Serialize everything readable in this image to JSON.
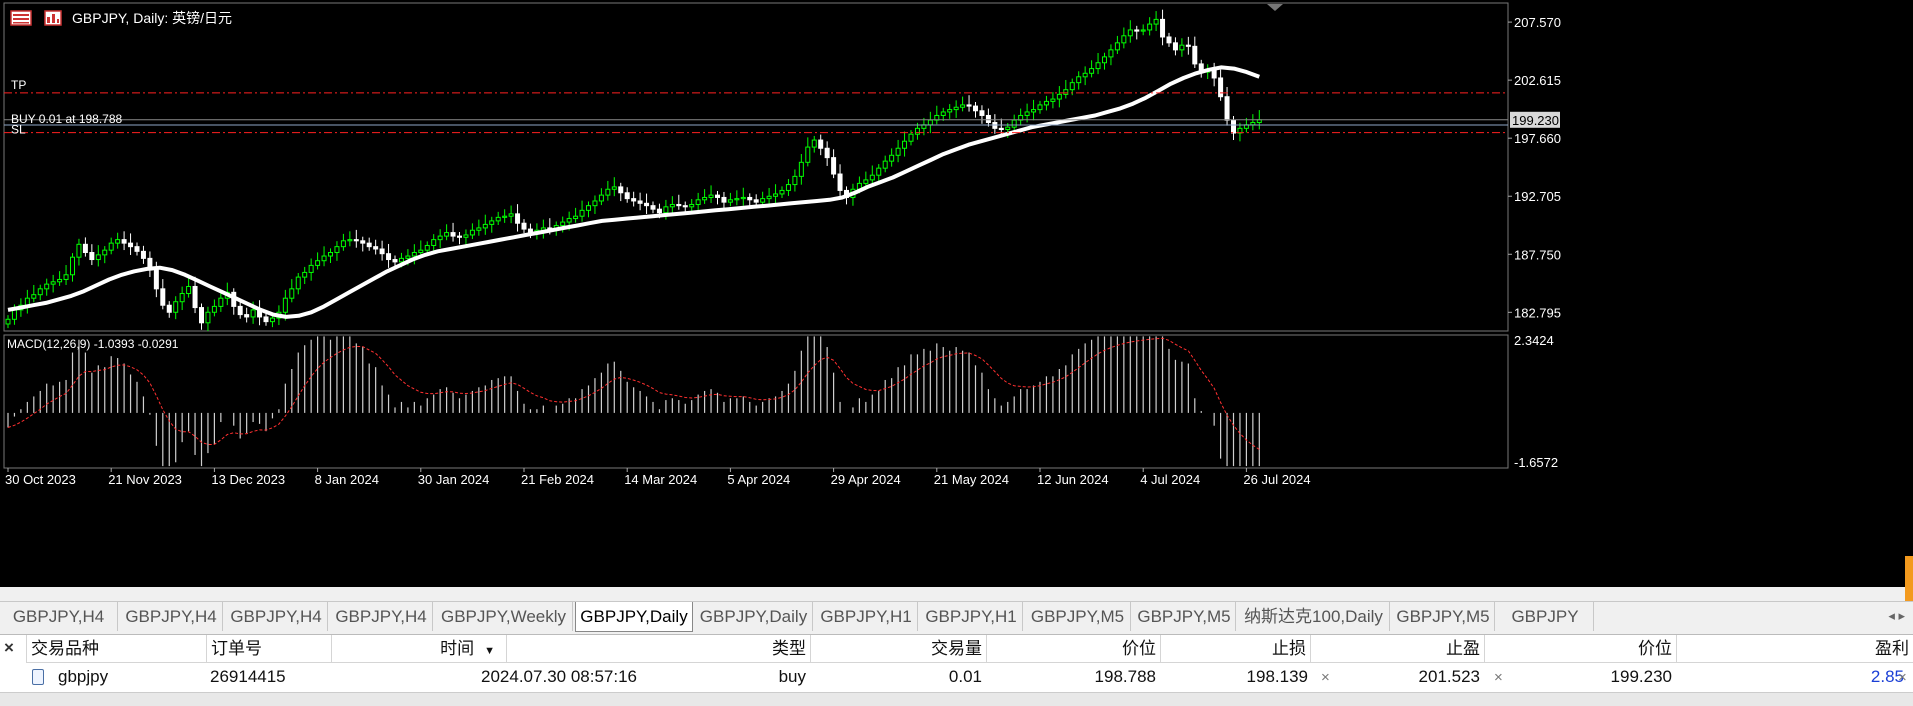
{
  "chart": {
    "title": "GBPJPY, Daily:  英镑/日元",
    "line_tp_label": "TP",
    "line_buy_label": "BUY 0.01 at 198.788",
    "line_sl_label": "SL",
    "current_price": "199.230",
    "price_levels": [
      {
        "value": 207.57,
        "label": "207.570"
      },
      {
        "value": 202.615,
        "label": "202.615"
      },
      {
        "value": 197.66,
        "label": "197.660"
      },
      {
        "value": 192.705,
        "label": "192.705"
      },
      {
        "value": 187.75,
        "label": "187.750"
      },
      {
        "value": 182.795,
        "label": "182.795"
      }
    ],
    "macd_label": "MACD(12,26,9) -1.0393 -0.0291",
    "macd_max_label": "2.3424",
    "macd_min_label": "-1.6572",
    "dates": [
      {
        "label": "30 Oct 2023",
        "index": 0
      },
      {
        "label": "21 Nov 2023",
        "index": 16
      },
      {
        "label": "13 Dec 2023",
        "index": 32
      },
      {
        "label": "8 Jan 2024",
        "index": 48
      },
      {
        "label": "30 Jan 2024",
        "index": 64
      },
      {
        "label": "21 Feb 2024",
        "index": 80
      },
      {
        "label": "14 Mar 2024",
        "index": 96
      },
      {
        "label": "5 Apr 2024",
        "index": 112
      },
      {
        "label": "29 Apr 2024",
        "index": 128
      },
      {
        "label": "21 May 2024",
        "index": 144
      },
      {
        "label": "12 Jun 2024",
        "index": 160
      },
      {
        "label": "4 Jul 2024",
        "index": 176
      },
      {
        "label": "26 Jul 2024",
        "index": 192
      }
    ],
    "levels": {
      "tp": 201.523,
      "buy": 198.788,
      "current": 199.23,
      "sl": 198.139
    },
    "colors": {
      "bull": "#00ff00",
      "bear": "#ffffff",
      "ma": "#ffffff",
      "tp_sl": "#ff2020",
      "signal": "#ff3030",
      "grid": "#444444"
    }
  },
  "chart_data": {
    "type": "candlestick",
    "symbol": "GBPJPY",
    "timeframe": "Daily",
    "ylim": [
      181.2,
      209.2
    ],
    "close": [
      182.2,
      183.0,
      183.4,
      184.0,
      184.3,
      184.8,
      185.2,
      185.4,
      185.6,
      186.0,
      187.5,
      188.6,
      187.9,
      187.3,
      187.7,
      188.1,
      188.7,
      189.0,
      188.7,
      188.4,
      188.0,
      187.4,
      186.4,
      184.8,
      183.4,
      182.8,
      183.7,
      184.4,
      185.0,
      183.2,
      181.9,
      182.8,
      183.3,
      184.0,
      184.5,
      183.3,
      182.6,
      182.4,
      183.0,
      182.4,
      182.0,
      182.3,
      182.8,
      184.0,
      184.8,
      185.8,
      186.2,
      186.8,
      187.2,
      187.6,
      187.9,
      188.4,
      188.9,
      189.0,
      188.9,
      188.7,
      188.4,
      188.2,
      187.8,
      187.3,
      187.1,
      187.4,
      187.6,
      187.9,
      188.1,
      188.5,
      189.0,
      189.3,
      189.6,
      189.3,
      189.2,
      189.4,
      189.8,
      190.0,
      190.3,
      190.6,
      190.9,
      191.0,
      191.2,
      190.4,
      189.9,
      189.6,
      189.8,
      190.0,
      189.8,
      190.2,
      190.5,
      190.8,
      191.0,
      191.5,
      191.9,
      192.3,
      192.8,
      193.3,
      193.5,
      193.0,
      192.5,
      192.3,
      192.1,
      191.9,
      191.6,
      191.3,
      191.8,
      192.0,
      191.9,
      191.8,
      192.0,
      192.4,
      192.6,
      192.8,
      192.6,
      192.2,
      192.4,
      192.5,
      192.6,
      192.4,
      192.2,
      192.5,
      192.7,
      192.9,
      193.2,
      193.7,
      194.4,
      195.6,
      196.9,
      197.5,
      196.8,
      196.0,
      194.6,
      193.2,
      192.6,
      193.3,
      193.8,
      194.1,
      194.5,
      195.1,
      195.7,
      196.2,
      196.8,
      197.4,
      198.0,
      198.5,
      198.8,
      199.2,
      199.6,
      199.9,
      200.1,
      200.3,
      200.5,
      200.4,
      200.0,
      199.6,
      199.0,
      198.5,
      198.4,
      198.6,
      199.2,
      199.6,
      199.9,
      200.1,
      200.5,
      200.8,
      201.0,
      201.4,
      201.8,
      202.4,
      202.9,
      203.2,
      203.6,
      204.1,
      204.6,
      205.2,
      205.8,
      206.4,
      206.9,
      206.8,
      206.9,
      207.4,
      207.8,
      206.3,
      205.8,
      205.2,
      205.6,
      205.5,
      204.0,
      203.3,
      203.5,
      202.8,
      201.2,
      199.2,
      198.1,
      198.5,
      198.8,
      199.0,
      199.23
    ],
    "moving_average": [
      183.0,
      183.2,
      183.4,
      183.6,
      183.9,
      184.2,
      184.6,
      185.1,
      185.6,
      186.0,
      186.3,
      186.5,
      186.6,
      186.4,
      186.0,
      185.5,
      185.0,
      184.5,
      184.0,
      183.5,
      183.0,
      182.6,
      182.4,
      182.5,
      182.8,
      183.3,
      183.9,
      184.5,
      185.1,
      185.7,
      186.3,
      186.8,
      187.3,
      187.7,
      188.0,
      188.2,
      188.4,
      188.6,
      188.8,
      189.0,
      189.2,
      189.4,
      189.6,
      189.8,
      190.0,
      190.2,
      190.4,
      190.6,
      190.7,
      190.8,
      190.9,
      191.0,
      191.1,
      191.2,
      191.3,
      191.4,
      191.5,
      191.6,
      191.7,
      191.8,
      191.9,
      192.0,
      192.1,
      192.2,
      192.3,
      192.4,
      192.6,
      193.0,
      193.5,
      193.9,
      194.3,
      194.8,
      195.3,
      195.8,
      196.3,
      196.7,
      197.1,
      197.4,
      197.7,
      198.0,
      198.3,
      198.6,
      198.8,
      199.0,
      199.2,
      199.4,
      199.6,
      199.9,
      200.2,
      200.6,
      201.1,
      201.7,
      202.3,
      202.8,
      203.2,
      203.5,
      203.7,
      203.6,
      203.3,
      202.9
    ]
  },
  "tabs": [
    "GBPJPY,H4",
    "GBPJPY,H4",
    "GBPJPY,H4",
    "GBPJPY,H4",
    "GBPJPY,Weekly",
    "GBPJPY,Daily",
    "GBPJPY,Daily",
    "GBPJPY,H1",
    "GBPJPY,H1",
    "GBPJPY,M5",
    "GBPJPY,M5",
    "纳斯达克100,Daily",
    "GBPJPY,M5",
    "GBPJPY"
  ],
  "active_tab": 5,
  "tab_arrows": "◂ ▸",
  "terminal": {
    "close": "×",
    "headers": [
      "交易品种",
      "订单号",
      "时间",
      "类型",
      "交易量",
      "价位",
      "止损",
      "止盈",
      "价位",
      "盈利"
    ],
    "sort_indicator": "▼",
    "row": {
      "symbol": "gbpjpy",
      "order": "26914415",
      "time": "2024.07.30 08:57:16",
      "type": "buy",
      "volume": "0.01",
      "open_price": "198.788",
      "sl": "198.139",
      "tp": "201.523",
      "price": "199.230",
      "profit": "2.85",
      "x": "×"
    }
  }
}
